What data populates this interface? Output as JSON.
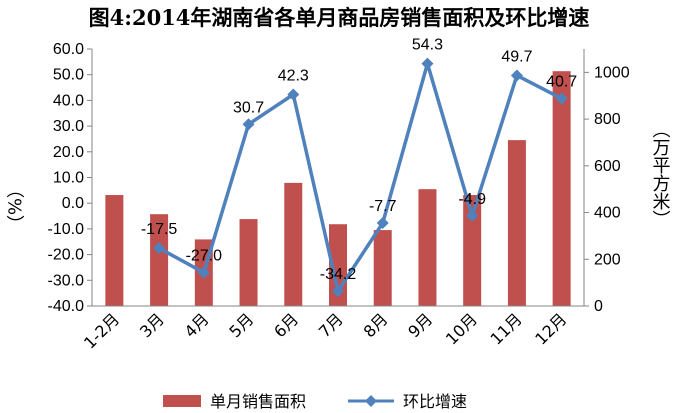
{
  "title": "图4:2014年湖南省各单月商品房销售面积及环比增速",
  "chart_data": {
    "type": "bar+line",
    "categories": [
      "1-2月",
      "3月",
      "4月",
      "5月",
      "6月",
      "7月",
      "8月",
      "9月",
      "10月",
      "11月",
      "12月"
    ],
    "series": [
      {
        "name": "单月销售面积",
        "type": "bar",
        "axis": "right",
        "color": "#C0504D",
        "values": [
          475,
          393,
          285,
          372,
          527,
          350,
          325,
          500,
          475,
          710,
          1005
        ]
      },
      {
        "name": "环比增速",
        "type": "line",
        "axis": "left",
        "color": "#4F81BD",
        "values": [
          null,
          -17.5,
          -27.0,
          30.7,
          42.3,
          -34.2,
          -7.7,
          54.3,
          -4.9,
          49.7,
          40.7
        ],
        "labels": [
          "",
          "-17.5",
          "-27.0",
          "30.7",
          "42.3",
          "-34.2",
          "-7.7",
          "54.3",
          "-4.9",
          "49.7",
          "40.7"
        ]
      }
    ],
    "left_axis": {
      "label": "（%）",
      "ylim": [
        -40,
        60
      ],
      "ticks": [
        "60.0",
        "50.0",
        "40.0",
        "30.0",
        "20.0",
        "10.0",
        "0.0",
        "-10.0",
        "-20.0",
        "-30.0",
        "-40.0"
      ]
    },
    "right_axis": {
      "label": "（万平方米）",
      "ylim": [
        0,
        1100
      ],
      "ticks": [
        "1000",
        "800",
        "600",
        "400",
        "200",
        "0"
      ]
    },
    "grid": false,
    "legend_position": "bottom"
  }
}
